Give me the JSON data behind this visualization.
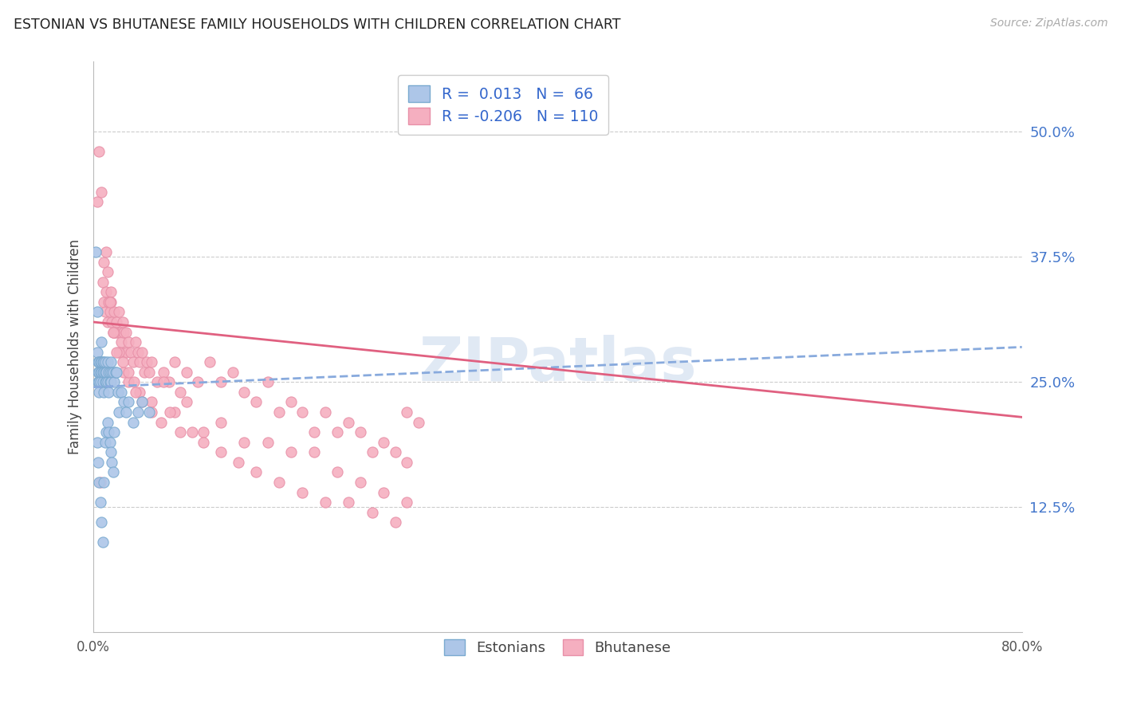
{
  "title": "ESTONIAN VS BHUTANESE FAMILY HOUSEHOLDS WITH CHILDREN CORRELATION CHART",
  "source": "Source: ZipAtlas.com",
  "ylabel": "Family Households with Children",
  "ytick_labels": [
    "12.5%",
    "25.0%",
    "37.5%",
    "50.0%"
  ],
  "ytick_values": [
    0.125,
    0.25,
    0.375,
    0.5
  ],
  "xmin": 0.0,
  "xmax": 0.8,
  "ymin": 0.0,
  "ymax": 0.57,
  "watermark": "ZIPatlas",
  "estonian_color": "#adc6e8",
  "bhutanese_color": "#f5afc0",
  "estonian_edge_color": "#7aaad0",
  "bhutanese_edge_color": "#e890a8",
  "estonian_line_color": "#88aadd",
  "bhutanese_line_color": "#e06080",
  "estonian_x": [
    0.002,
    0.003,
    0.003,
    0.004,
    0.004,
    0.004,
    0.005,
    0.005,
    0.005,
    0.005,
    0.006,
    0.006,
    0.006,
    0.007,
    0.007,
    0.007,
    0.008,
    0.008,
    0.008,
    0.009,
    0.009,
    0.009,
    0.01,
    0.01,
    0.01,
    0.011,
    0.011,
    0.012,
    0.012,
    0.013,
    0.013,
    0.014,
    0.014,
    0.015,
    0.015,
    0.016,
    0.017,
    0.018,
    0.019,
    0.02,
    0.021,
    0.022,
    0.024,
    0.026,
    0.028,
    0.03,
    0.034,
    0.038,
    0.042,
    0.048,
    0.003,
    0.004,
    0.005,
    0.006,
    0.007,
    0.008,
    0.009,
    0.01,
    0.011,
    0.012,
    0.013,
    0.014,
    0.015,
    0.016,
    0.017,
    0.018
  ],
  "estonian_y": [
    0.38,
    0.32,
    0.28,
    0.27,
    0.26,
    0.25,
    0.27,
    0.26,
    0.25,
    0.24,
    0.27,
    0.26,
    0.25,
    0.29,
    0.27,
    0.26,
    0.27,
    0.26,
    0.25,
    0.27,
    0.26,
    0.24,
    0.27,
    0.26,
    0.25,
    0.26,
    0.25,
    0.27,
    0.25,
    0.26,
    0.24,
    0.26,
    0.25,
    0.27,
    0.25,
    0.26,
    0.26,
    0.25,
    0.26,
    0.26,
    0.24,
    0.22,
    0.24,
    0.23,
    0.22,
    0.23,
    0.21,
    0.22,
    0.23,
    0.22,
    0.19,
    0.17,
    0.15,
    0.13,
    0.11,
    0.09,
    0.15,
    0.19,
    0.2,
    0.21,
    0.2,
    0.19,
    0.18,
    0.17,
    0.16,
    0.2
  ],
  "bhutanese_x": [
    0.003,
    0.005,
    0.007,
    0.008,
    0.009,
    0.01,
    0.011,
    0.012,
    0.013,
    0.014,
    0.015,
    0.016,
    0.017,
    0.018,
    0.019,
    0.02,
    0.021,
    0.022,
    0.023,
    0.024,
    0.025,
    0.026,
    0.027,
    0.028,
    0.029,
    0.03,
    0.032,
    0.034,
    0.036,
    0.038,
    0.04,
    0.042,
    0.044,
    0.046,
    0.048,
    0.05,
    0.055,
    0.06,
    0.065,
    0.07,
    0.075,
    0.08,
    0.09,
    0.1,
    0.11,
    0.12,
    0.13,
    0.14,
    0.15,
    0.16,
    0.17,
    0.18,
    0.19,
    0.2,
    0.21,
    0.22,
    0.23,
    0.24,
    0.25,
    0.26,
    0.27,
    0.009,
    0.012,
    0.015,
    0.018,
    0.022,
    0.026,
    0.03,
    0.035,
    0.04,
    0.05,
    0.06,
    0.07,
    0.08,
    0.095,
    0.11,
    0.13,
    0.15,
    0.17,
    0.19,
    0.21,
    0.23,
    0.25,
    0.27,
    0.011,
    0.014,
    0.017,
    0.02,
    0.025,
    0.03,
    0.036,
    0.042,
    0.05,
    0.058,
    0.066,
    0.075,
    0.085,
    0.095,
    0.11,
    0.125,
    0.14,
    0.16,
    0.18,
    0.2,
    0.22,
    0.24,
    0.26,
    0.006,
    0.27,
    0.28
  ],
  "bhutanese_y": [
    0.43,
    0.48,
    0.44,
    0.35,
    0.33,
    0.32,
    0.34,
    0.31,
    0.33,
    0.32,
    0.34,
    0.31,
    0.3,
    0.32,
    0.3,
    0.31,
    0.3,
    0.32,
    0.3,
    0.29,
    0.31,
    0.3,
    0.28,
    0.3,
    0.28,
    0.29,
    0.28,
    0.27,
    0.29,
    0.28,
    0.27,
    0.28,
    0.26,
    0.27,
    0.26,
    0.27,
    0.25,
    0.26,
    0.25,
    0.27,
    0.24,
    0.26,
    0.25,
    0.27,
    0.25,
    0.26,
    0.24,
    0.23,
    0.25,
    0.22,
    0.23,
    0.22,
    0.2,
    0.22,
    0.2,
    0.21,
    0.2,
    0.18,
    0.19,
    0.18,
    0.17,
    0.37,
    0.36,
    0.33,
    0.3,
    0.28,
    0.26,
    0.25,
    0.25,
    0.24,
    0.23,
    0.25,
    0.22,
    0.23,
    0.2,
    0.21,
    0.19,
    0.19,
    0.18,
    0.18,
    0.16,
    0.15,
    0.14,
    0.13,
    0.38,
    0.33,
    0.3,
    0.28,
    0.27,
    0.26,
    0.24,
    0.23,
    0.22,
    0.21,
    0.22,
    0.2,
    0.2,
    0.19,
    0.18,
    0.17,
    0.16,
    0.15,
    0.14,
    0.13,
    0.13,
    0.12,
    0.11,
    0.15,
    0.22,
    0.21
  ],
  "estonian_trend_x": [
    0.0,
    0.8
  ],
  "estonian_trend_y": [
    0.245,
    0.285
  ],
  "bhutanese_trend_x": [
    0.0,
    0.8
  ],
  "bhutanese_trend_y": [
    0.31,
    0.215
  ]
}
